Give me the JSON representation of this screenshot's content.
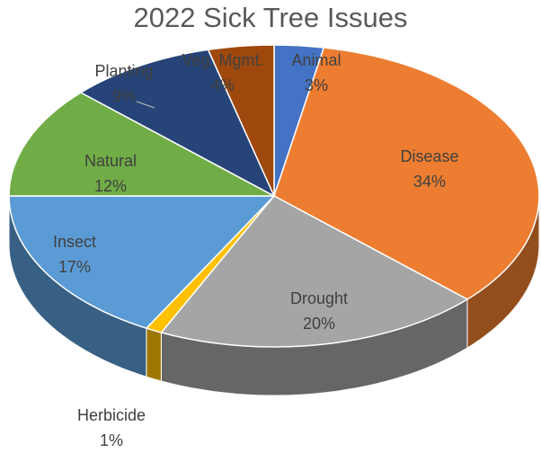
{
  "chart_data": {
    "type": "pie",
    "title": "2022 Sick Tree Issues",
    "slices": [
      {
        "label": "Animal",
        "percent_label": "3%",
        "value": 3,
        "color": "#4472C4"
      },
      {
        "label": "Disease",
        "percent_label": "34%",
        "value": 34,
        "color": "#ED7D31"
      },
      {
        "label": "Drought",
        "percent_label": "20%",
        "value": 20,
        "color": "#A5A5A5"
      },
      {
        "label": "Herbicide",
        "percent_label": "1%",
        "value": 1,
        "color": "#FFC000"
      },
      {
        "label": "Insect",
        "percent_label": "17%",
        "value": 17,
        "color": "#5B9BD5"
      },
      {
        "label": "Natural",
        "percent_label": "12%",
        "value": 12,
        "color": "#70AD47"
      },
      {
        "label": "Planting",
        "percent_label": "9%",
        "value": 9,
        "color": "#264478"
      },
      {
        "label": "Veg. Mgmt.",
        "percent_label": "4%",
        "value": 4,
        "color": "#9E480E"
      }
    ],
    "label_color": "#404040",
    "style": "3d-pie"
  }
}
